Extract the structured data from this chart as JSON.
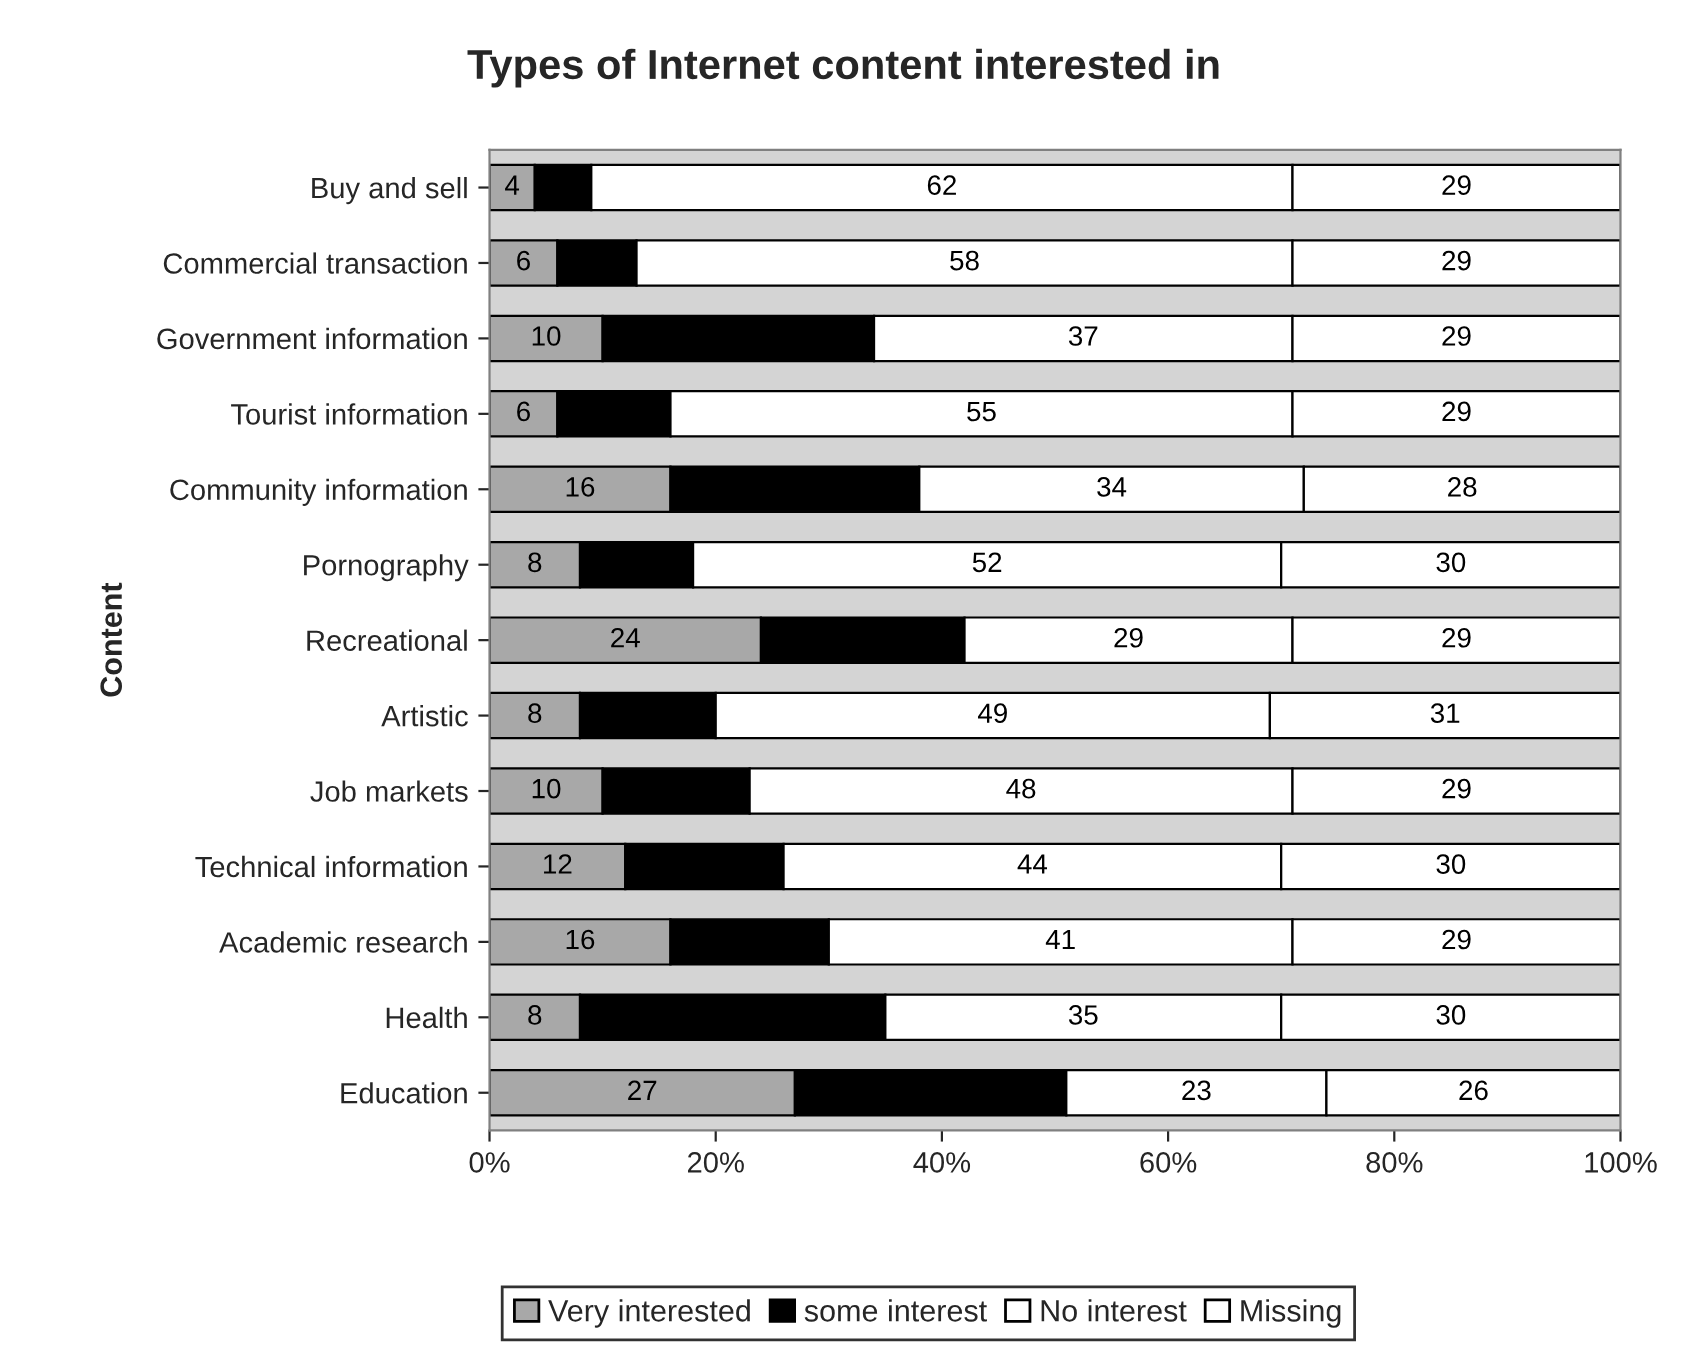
{
  "chart_data": {
    "type": "bar",
    "orientation": "horizontal",
    "stacked": true,
    "title": "Types of Internet content interested in",
    "ylabel": "Content",
    "categories": [
      "Buy and sell",
      "Commercial transaction",
      "Government information",
      "Tourist information",
      "Community information",
      "Pornography",
      "Recreational",
      "Artistic",
      "Job markets",
      "Technical information",
      "Academic research",
      "Health",
      "Education"
    ],
    "series": [
      {
        "name": "Very interested",
        "color": "#a8a8a8",
        "values": [
          4,
          6,
          10,
          6,
          16,
          8,
          24,
          8,
          10,
          12,
          16,
          8,
          27
        ],
        "value_labels": [
          "4",
          "6",
          "10",
          "6",
          "16",
          "8",
          "24",
          "8",
          "10",
          "12",
          "16",
          "8",
          "27"
        ]
      },
      {
        "name": "some interest",
        "color": "#000000",
        "values": [
          5,
          7,
          24,
          10,
          22,
          10,
          18,
          12,
          13,
          14,
          14,
          27,
          24
        ]
      },
      {
        "name": "No interest",
        "color": "#ffffff",
        "values": [
          62,
          58,
          37,
          55,
          34,
          52,
          29,
          49,
          48,
          44,
          41,
          35,
          23
        ],
        "value_labels": [
          "62",
          "58",
          "37",
          "55",
          "34",
          "52",
          "29",
          "49",
          "48",
          "44",
          "41",
          "35",
          "23"
        ]
      },
      {
        "name": "Missing",
        "color": "#ffffff",
        "values": [
          29,
          29,
          29,
          29,
          28,
          30,
          29,
          31,
          29,
          30,
          29,
          30,
          26
        ],
        "value_labels": [
          "29",
          "29",
          "29",
          "29",
          "28",
          "30",
          "29",
          "31",
          "29",
          "30",
          "29",
          "30",
          "26"
        ]
      }
    ],
    "xlim": [
      0,
      100
    ],
    "xticks": [
      {
        "value": 0,
        "label": "0%"
      },
      {
        "value": 20,
        "label": "20%"
      },
      {
        "value": 40,
        "label": "40%"
      },
      {
        "value": 60,
        "label": "60%"
      },
      {
        "value": 80,
        "label": "80%"
      },
      {
        "value": 100,
        "label": "100%"
      }
    ],
    "grid": false,
    "legend": "bottom"
  }
}
